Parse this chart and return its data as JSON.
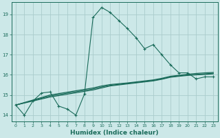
{
  "xlabel": "Humidex (Indice chaleur)",
  "bg_color": "#cce8e8",
  "grid_color": "#aacccc",
  "line_color": "#1a6b5a",
  "xlim": [
    -0.5,
    23.5
  ],
  "ylim": [
    13.7,
    19.6
  ],
  "yticks": [
    14,
    15,
    16,
    17,
    18,
    19
  ],
  "xticks": [
    0,
    1,
    2,
    3,
    4,
    5,
    6,
    7,
    8,
    9,
    10,
    11,
    12,
    13,
    14,
    15,
    16,
    17,
    18,
    19,
    20,
    21,
    22,
    23
  ],
  "line1_x": [
    0,
    1,
    2,
    3,
    4,
    5,
    6,
    7,
    8,
    9,
    10,
    11,
    12,
    13,
    14,
    15,
    16,
    17,
    18,
    19,
    20,
    21,
    22,
    23
  ],
  "line1_y": [
    14.5,
    14.0,
    14.7,
    15.1,
    15.15,
    14.45,
    14.3,
    14.0,
    15.05,
    18.85,
    19.35,
    19.1,
    18.7,
    18.3,
    17.85,
    17.3,
    17.5,
    17.0,
    16.5,
    16.1,
    16.1,
    15.8,
    15.9,
    15.9
  ],
  "line2_x": [
    0,
    4,
    9,
    10,
    11,
    12,
    13,
    14,
    15,
    16,
    17,
    18,
    19,
    20,
    21,
    22,
    23
  ],
  "line2_y": [
    14.5,
    14.9,
    15.25,
    15.35,
    15.45,
    15.5,
    15.55,
    15.6,
    15.65,
    15.7,
    15.78,
    15.88,
    15.93,
    15.97,
    16.0,
    16.02,
    16.05
  ],
  "line3_x": [
    0,
    4,
    9,
    10,
    11,
    12,
    13,
    14,
    15,
    16,
    17,
    18,
    19,
    20,
    21,
    22,
    23
  ],
  "line3_y": [
    14.5,
    14.95,
    15.3,
    15.4,
    15.48,
    15.53,
    15.58,
    15.62,
    15.67,
    15.72,
    15.8,
    15.9,
    15.95,
    16.0,
    16.02,
    16.05,
    16.08
  ],
  "line4_x": [
    0,
    4,
    9,
    10,
    11,
    12,
    13,
    14,
    15,
    16,
    17,
    18,
    19,
    20,
    21,
    22,
    23
  ],
  "line4_y": [
    14.5,
    15.0,
    15.35,
    15.45,
    15.52,
    15.56,
    15.6,
    15.65,
    15.7,
    15.75,
    15.83,
    15.93,
    15.98,
    16.03,
    16.07,
    16.1,
    16.12
  ]
}
